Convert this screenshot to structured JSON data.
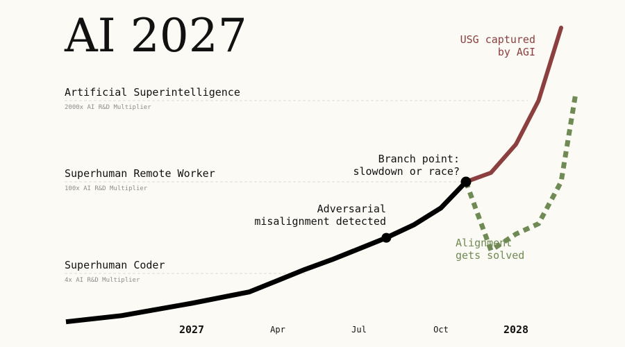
{
  "title": "AI 2027",
  "milestones": [
    {
      "name": "Artificial Superintelligence",
      "subtitle": "2000x AI R&D Multiplier"
    },
    {
      "name": "Superhuman Remote Worker",
      "subtitle": "100x AI R&D Multiplier"
    },
    {
      "name": "Superhuman Coder",
      "subtitle": "4x AI R&D Multiplier"
    }
  ],
  "annotations": {
    "branch_point": [
      "Branch point:",
      "slowdown or race?"
    ],
    "adversarial": [
      "Adversarial",
      "misalignment detected"
    ],
    "usg_captured": [
      "USG captured",
      "by AGI"
    ],
    "alignment_solved": [
      "Alignment",
      "gets solved"
    ]
  },
  "colors": {
    "background": "#fbfaf4",
    "main_line": "#000000",
    "race": "#8b3f3f",
    "slowdown": "#6f8a55"
  },
  "chart_data": {
    "type": "line",
    "title": "AI 2027",
    "x_axis": {
      "type": "time",
      "tick_labels": [
        "2027",
        "Apr",
        "Jul",
        "Oct",
        "2028"
      ],
      "range": [
        "2026-07",
        "2028-04"
      ]
    },
    "y_axis": {
      "scale": "log",
      "quantity": "AI R&D Multiplier",
      "labeled_levels": [
        {
          "value": 4,
          "label": "Superhuman Coder"
        },
        {
          "value": 100,
          "label": "Superhuman Remote Worker"
        },
        {
          "value": 2000,
          "label": "Artificial Superintelligence"
        }
      ]
    },
    "grid": "dashed lines at milestone levels",
    "legend": "none",
    "series": [
      {
        "style": "solid",
        "color": "#000000",
        "points": [
          {
            "x": "2026-07",
            "y": 1.3
          },
          {
            "x": "2026-10",
            "y": 1.5
          },
          {
            "x": "2027-01",
            "y": 2.0
          },
          {
            "x": "2027-03",
            "y": 2.6
          },
          {
            "x": "2027-04",
            "y": 3.4
          },
          {
            "x": "2027-05",
            "y": 4.6
          },
          {
            "x": "2027-06",
            "y": 6.5
          },
          {
            "x": "2027-07",
            "y": 9.5
          },
          {
            "x": "2027-08",
            "y": 14
          },
          {
            "x": "2027-09",
            "y": 22
          },
          {
            "x": "2027-10",
            "y": 40
          },
          {
            "x": "2027-11",
            "y": 100
          }
        ],
        "markers": [
          {
            "x": "2027-08",
            "y": 14,
            "annotation": "adversarial"
          },
          {
            "x": "2027-11",
            "y": 100,
            "annotation": "branch_point"
          }
        ]
      },
      {
        "name": "USG captured by AGI",
        "style": "solid",
        "color": "#8b3f3f",
        "points": [
          {
            "x": "2027-11",
            "y": 100
          },
          {
            "x": "2027-12",
            "y": 140
          },
          {
            "x": "2028-01",
            "y": 400
          },
          {
            "x": "2028-02",
            "y": 2000
          },
          {
            "x": "2028-03",
            "y": 40000
          }
        ]
      },
      {
        "name": "Alignment gets solved",
        "style": "dotted",
        "color": "#6f8a55",
        "points": [
          {
            "x": "2027-11",
            "y": 100
          },
          {
            "x": "2027-12",
            "y": 9
          },
          {
            "x": "2028-01",
            "y": 16
          },
          {
            "x": "2028-02",
            "y": 23
          },
          {
            "x": "2028-03",
            "y": 100
          },
          {
            "x": "2028-03-20",
            "y": 2500
          }
        ]
      }
    ]
  }
}
